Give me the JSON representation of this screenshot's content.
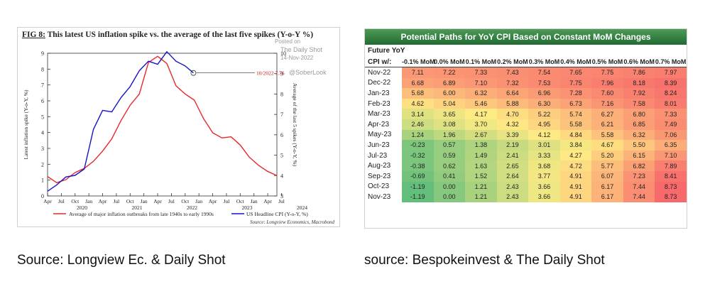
{
  "left_figure": {
    "title_prefix": "FIG 8:",
    "title_rest": "This latest US inflation spike vs. the average of the last five spikes (Y-o-Y %)",
    "watermark_posted": "Posted on",
    "watermark_site": "The Daily Shot",
    "watermark_date": "14-Nov-2022",
    "watermark_handle": "@SoberLook",
    "annotation": "10/2022 7.76",
    "source_note": "Source: Longview Economics, Macrobond",
    "caption": "Source: Longview Ec. & Daily Shot"
  },
  "chart_data": {
    "type": "line",
    "title": "FIG 8: This latest US inflation spike vs. the average of the last five spikes (Y-o-Y %)",
    "ylabel_left": "Latest inflation spike (Y-o-Y, %)",
    "ylabel_right": "Average of the last 5 spikes (Y-o-Y, %)",
    "ylim_left": [
      0,
      9
    ],
    "ylim_right": [
      3,
      10
    ],
    "yticks_left": [
      "0",
      "1",
      "2",
      "3",
      "4",
      "5",
      "6",
      "7",
      "8",
      "9"
    ],
    "yticks_right": [
      "3",
      "4",
      "5",
      "6",
      "7",
      "8",
      "9",
      "10"
    ],
    "x_tick_labels": [
      "Apr",
      "Jul",
      "Oct",
      "Jan",
      "Apr",
      "Jul",
      "Oct",
      "Jan",
      "Apr",
      "Jul",
      "Oct",
      "Jan",
      "Apr",
      "Jul",
      "Oct",
      "Jan",
      "Apr",
      "Jul"
    ],
    "x_year_labels": [
      {
        "label": "2020",
        "at": 3.5
      },
      {
        "label": "2021",
        "at": 7.5
      },
      {
        "label": "2022",
        "at": 11.5
      },
      {
        "label": "2023",
        "at": 15.5
      },
      {
        "label": "2024",
        "at": 19.5
      }
    ],
    "x_range": [
      0,
      25
    ],
    "series": [
      {
        "name": "Average of major inflation outbreaks from late 1940s to early 1990s",
        "color": "#e8272a",
        "axis": "right",
        "x": [
          0,
          1,
          2,
          3,
          4,
          5,
          6,
          7,
          8,
          9,
          10,
          11,
          12,
          13,
          14,
          15,
          16,
          17,
          18,
          19,
          20,
          21,
          22,
          23,
          24,
          25
        ],
        "values": [
          3.95,
          3.65,
          3.8,
          4.15,
          4.35,
          4.7,
          5.2,
          5.8,
          6.7,
          7.45,
          8.0,
          9.55,
          9.85,
          9.5,
          8.4,
          8.0,
          7.7,
          6.8,
          6.1,
          5.85,
          5.9,
          5.5,
          4.9,
          4.5,
          4.2,
          4.0
        ]
      },
      {
        "name": "US Headline CPI (Y-o-Y, %)",
        "color": "#1515c8",
        "axis": "left",
        "x": [
          0,
          1,
          2,
          3,
          4,
          5,
          6,
          7,
          8,
          9,
          10,
          11,
          12,
          13,
          14,
          15,
          15.9
        ],
        "values": [
          0.3,
          0.7,
          1.2,
          1.3,
          1.7,
          4.2,
          5.4,
          5.3,
          6.2,
          6.9,
          7.9,
          8.5,
          8.3,
          9.1,
          8.5,
          8.2,
          7.76
        ]
      }
    ]
  },
  "right_table": {
    "title": "Potential Paths for YoY CPI Based on Constant MoM Changes",
    "header_line1": "Future YoY",
    "header_line2": "CPI w/:",
    "columns": [
      "-0.1% MoM",
      "0.0% MoM",
      "0.1% MoM",
      "0.2% MoM",
      "0.3% MoM",
      "0.4% MoM",
      "0.5% MoM",
      "0.6% MoM",
      "0.7% MoM"
    ],
    "rows": [
      {
        "month": "Nov-22",
        "values": [
          "7.11",
          "7.22",
          "7.33",
          "7.43",
          "7.54",
          "7.65",
          "7.75",
          "7.86",
          "7.97"
        ]
      },
      {
        "month": "Dec-22",
        "values": [
          "6.68",
          "6.89",
          "7.10",
          "7.32",
          "7.53",
          "7.75",
          "7.96",
          "8.18",
          "8.39"
        ]
      },
      {
        "month": "Jan-23",
        "values": [
          "5.68",
          "6.00",
          "6.32",
          "6.64",
          "6.96",
          "7.28",
          "7.60",
          "7.92",
          "8.24"
        ]
      },
      {
        "month": "Feb-23",
        "values": [
          "4.62",
          "5.04",
          "5.46",
          "5.88",
          "6.30",
          "6.73",
          "7.16",
          "7.58",
          "8.01"
        ]
      },
      {
        "month": "Mar-23",
        "values": [
          "3.14",
          "3.65",
          "4.17",
          "4.70",
          "5.22",
          "5.74",
          "6.27",
          "6.80",
          "7.33"
        ]
      },
      {
        "month": "Apr-23",
        "values": [
          "2.46",
          "3.08",
          "3.70",
          "4.32",
          "4.95",
          "5.58",
          "6.21",
          "6.85",
          "7.49"
        ]
      },
      {
        "month": "May-23",
        "values": [
          "1.24",
          "1.96",
          "2.67",
          "3.39",
          "4.12",
          "4.84",
          "5.58",
          "6.32",
          "7.06"
        ]
      },
      {
        "month": "Jun-23",
        "values": [
          "-0.23",
          "0.57",
          "1.38",
          "2.19",
          "3.01",
          "3.84",
          "4.67",
          "5.50",
          "6.35"
        ]
      },
      {
        "month": "Jul-23",
        "values": [
          "-0.32",
          "0.59",
          "1.49",
          "2.41",
          "3.33",
          "4.27",
          "5.20",
          "6.15",
          "7.10"
        ]
      },
      {
        "month": "Aug-23",
        "values": [
          "-0.38",
          "0.62",
          "1.63",
          "2.65",
          "3.68",
          "4.72",
          "5.77",
          "6.82",
          "7.89"
        ]
      },
      {
        "month": "Sep-23",
        "values": [
          "-0.69",
          "0.41",
          "1.52",
          "2.64",
          "3.77",
          "4.91",
          "6.07",
          "7.23",
          "8.41"
        ]
      },
      {
        "month": "Oct-23",
        "values": [
          "-1.19",
          "0.00",
          "1.21",
          "2.43",
          "3.66",
          "4.91",
          "6.17",
          "7.44",
          "8.73"
        ]
      },
      {
        "month": "Nov-23",
        "values": [
          "-1.19",
          "0.00",
          "1.21",
          "2.43",
          "3.66",
          "4.91",
          "6.17",
          "7.44",
          "8.73"
        ]
      }
    ],
    "caption": "source: Bespokeinvest & The Daily Shot"
  }
}
